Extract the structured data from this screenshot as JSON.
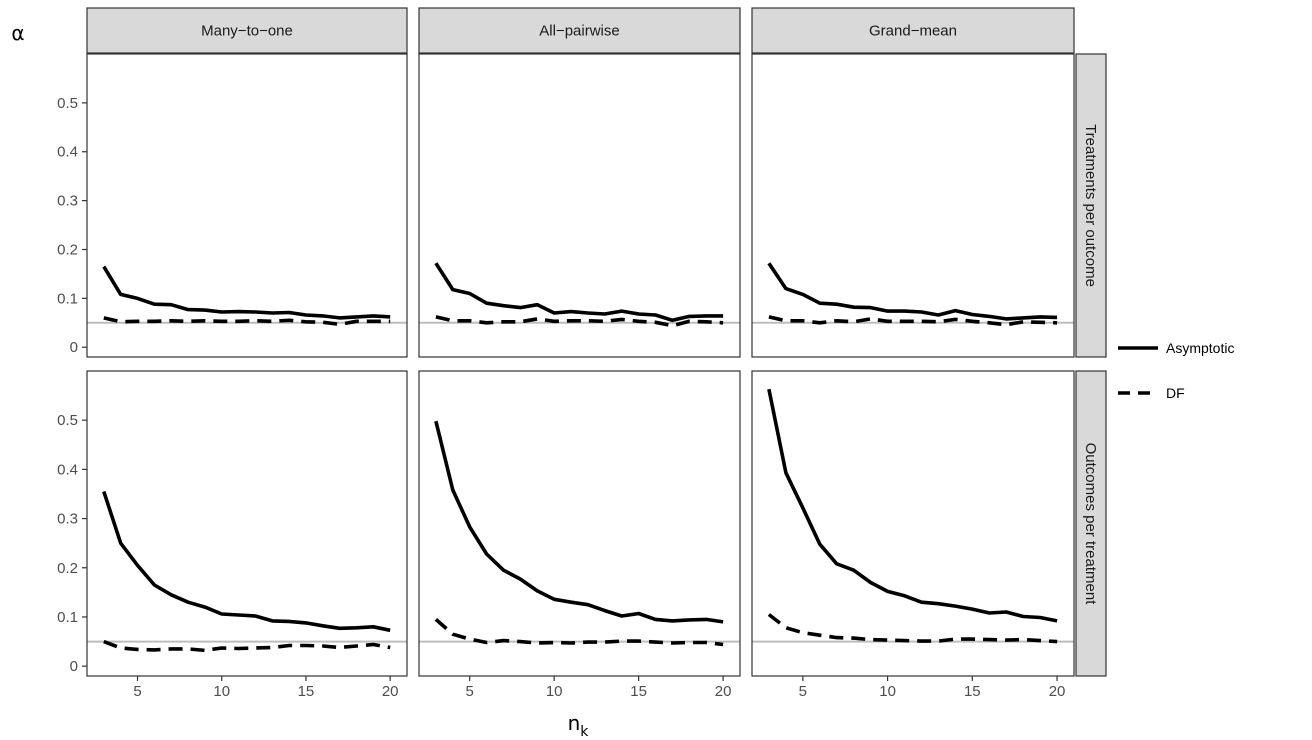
{
  "chart_data": {
    "type": "line",
    "xlabel": "n",
    "xlabel_sub": "k",
    "ylabel": "α",
    "x": [
      3,
      4,
      5,
      6,
      7,
      8,
      9,
      10,
      11,
      12,
      13,
      14,
      15,
      16,
      17,
      18,
      19,
      20
    ],
    "xlim": [
      2,
      21
    ],
    "ylim": [
      -0.02,
      0.6
    ],
    "x_ticks": [
      5,
      10,
      15,
      20
    ],
    "x_tick_labels": [
      "5",
      "10",
      "15",
      "20"
    ],
    "y_ticks": [
      0,
      0.1,
      0.2,
      0.3,
      0.4,
      0.5
    ],
    "y_tick_labels": [
      "0",
      "0.1",
      "0.2",
      "0.3",
      "0.4",
      "0.5"
    ],
    "reference_line": 0.05,
    "column_facets": [
      "Many−to−one",
      "All−pairwise",
      "Grand−mean"
    ],
    "row_facets": [
      "Treatments per outcome",
      "Outcomes per treatment"
    ],
    "legend": {
      "position": "right",
      "entries": [
        {
          "label": "Asymptotic",
          "linetype": "solid"
        },
        {
          "label": "DF",
          "linetype": "dashed"
        }
      ]
    },
    "panels": [
      {
        "row": 0,
        "col": 0,
        "series": [
          {
            "name": "Asymptotic",
            "values": [
              0.165,
              0.108,
              0.1,
              0.088,
              0.087,
              0.077,
              0.076,
              0.072,
              0.073,
              0.072,
              0.07,
              0.071,
              0.066,
              0.064,
              0.06,
              0.062,
              0.064,
              0.062
            ]
          },
          {
            "name": "DF",
            "values": [
              0.06,
              0.052,
              0.053,
              0.053,
              0.054,
              0.053,
              0.054,
              0.053,
              0.053,
              0.054,
              0.053,
              0.055,
              0.052,
              0.051,
              0.047,
              0.053,
              0.053,
              0.053
            ]
          }
        ]
      },
      {
        "row": 0,
        "col": 1,
        "series": [
          {
            "name": "Asymptotic",
            "values": [
              0.172,
              0.118,
              0.11,
              0.09,
              0.085,
              0.081,
              0.087,
              0.07,
              0.073,
              0.07,
              0.068,
              0.074,
              0.068,
              0.066,
              0.055,
              0.063,
              0.064,
              0.064
            ]
          },
          {
            "name": "DF",
            "values": [
              0.062,
              0.054,
              0.054,
              0.05,
              0.052,
              0.052,
              0.058,
              0.053,
              0.054,
              0.054,
              0.053,
              0.057,
              0.053,
              0.051,
              0.044,
              0.053,
              0.052,
              0.05
            ]
          }
        ]
      },
      {
        "row": 0,
        "col": 2,
        "series": [
          {
            "name": "Asymptotic",
            "values": [
              0.172,
              0.12,
              0.108,
              0.09,
              0.088,
              0.082,
              0.081,
              0.074,
              0.074,
              0.072,
              0.066,
              0.075,
              0.067,
              0.063,
              0.058,
              0.06,
              0.062,
              0.061
            ]
          },
          {
            "name": "DF",
            "values": [
              0.062,
              0.054,
              0.054,
              0.05,
              0.054,
              0.052,
              0.058,
              0.053,
              0.053,
              0.053,
              0.052,
              0.057,
              0.053,
              0.05,
              0.046,
              0.052,
              0.051,
              0.05
            ]
          }
        ]
      },
      {
        "row": 1,
        "col": 0,
        "series": [
          {
            "name": "Asymptotic",
            "values": [
              0.355,
              0.25,
              0.205,
              0.165,
              0.145,
              0.13,
              0.12,
              0.106,
              0.104,
              0.102,
              0.092,
              0.091,
              0.088,
              0.082,
              0.077,
              0.078,
              0.08,
              0.073
            ]
          },
          {
            "name": "DF",
            "values": [
              0.05,
              0.037,
              0.034,
              0.033,
              0.035,
              0.035,
              0.032,
              0.037,
              0.036,
              0.037,
              0.038,
              0.042,
              0.042,
              0.041,
              0.038,
              0.041,
              0.044,
              0.038
            ]
          }
        ]
      },
      {
        "row": 1,
        "col": 1,
        "series": [
          {
            "name": "Asymptotic",
            "values": [
              0.498,
              0.358,
              0.283,
              0.228,
              0.195,
              0.177,
              0.153,
              0.136,
              0.13,
              0.125,
              0.113,
              0.102,
              0.107,
              0.095,
              0.092,
              0.094,
              0.095,
              0.09
            ]
          },
          {
            "name": "DF",
            "values": [
              0.095,
              0.065,
              0.055,
              0.048,
              0.052,
              0.05,
              0.047,
              0.048,
              0.047,
              0.049,
              0.049,
              0.051,
              0.051,
              0.049,
              0.047,
              0.048,
              0.048,
              0.044
            ]
          }
        ]
      },
      {
        "row": 1,
        "col": 2,
        "series": [
          {
            "name": "Asymptotic",
            "values": [
              0.563,
              0.393,
              0.322,
              0.248,
              0.208,
              0.195,
              0.17,
              0.152,
              0.143,
              0.13,
              0.127,
              0.122,
              0.116,
              0.108,
              0.11,
              0.101,
              0.099,
              0.092
            ]
          },
          {
            "name": "DF",
            "values": [
              0.105,
              0.078,
              0.068,
              0.063,
              0.058,
              0.057,
              0.054,
              0.053,
              0.052,
              0.051,
              0.051,
              0.055,
              0.055,
              0.054,
              0.053,
              0.054,
              0.052,
              0.05
            ]
          }
        ]
      }
    ],
    "grid": false
  }
}
